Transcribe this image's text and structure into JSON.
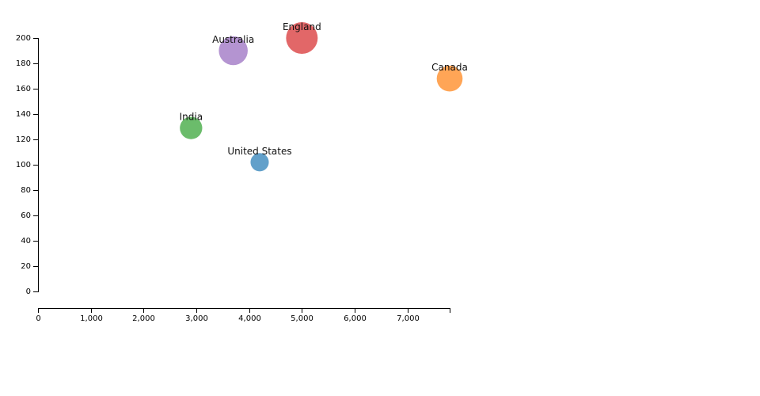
{
  "chart_data": {
    "type": "scatter",
    "title": "",
    "xlabel": "",
    "ylabel": "",
    "xlim": [
      0,
      7800
    ],
    "ylim": [
      0,
      200
    ],
    "grid": false,
    "x_ticks": [
      0,
      1000,
      2000,
      3000,
      4000,
      5000,
      6000,
      7000
    ],
    "x_tick_labels": [
      "0",
      "1,000",
      "2,000",
      "3,000",
      "4,000",
      "5,000",
      "6,000",
      "7,000"
    ],
    "y_ticks": [
      0,
      20,
      40,
      60,
      80,
      100,
      120,
      140,
      160,
      180,
      200
    ],
    "y_tick_labels": [
      "0",
      "20",
      "40",
      "60",
      "80",
      "100",
      "120",
      "140",
      "160",
      "180",
      "200"
    ],
    "points": [
      {
        "label": "United States",
        "x": 4200,
        "y": 102,
        "size": 20,
        "color": "#1f77b4"
      },
      {
        "label": "Canada",
        "x": 7800,
        "y": 168,
        "size": 40,
        "color": "#ff7f0e"
      },
      {
        "label": "India",
        "x": 2900,
        "y": 129,
        "size": 30,
        "color": "#2ca02c"
      },
      {
        "label": "England",
        "x": 5000,
        "y": 200,
        "size": 60,
        "color": "#d62728"
      },
      {
        "label": "Australia",
        "x": 3700,
        "y": 190,
        "size": 50,
        "color": "#9467bd"
      }
    ]
  }
}
